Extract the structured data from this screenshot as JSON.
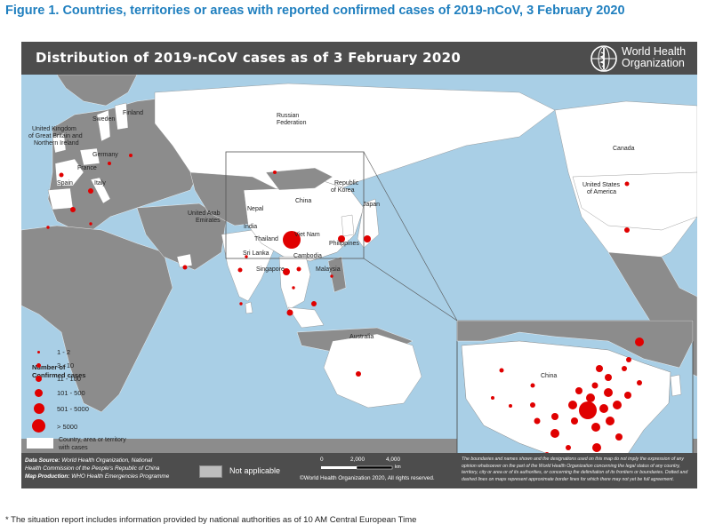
{
  "figure_title": "Figure 1. Countries, territories or areas with reported confirmed cases of 2019-nCoV, 3 February 2020",
  "map_title": "Distribution of 2019-nCoV cases as of 3 February 2020",
  "organization": {
    "line1": "World Health",
    "line2": "Organization"
  },
  "colors": {
    "case_dot": "#e00000",
    "header_bg": "#4d4d4d",
    "ocean": "#a9cfe6",
    "affected": "#ffffff",
    "unaffected": "#8c8c8c",
    "not_applicable": "#bdbdbd",
    "title_blue": "#1f7fbf"
  },
  "labels": {
    "finland": "Finland",
    "sweden": "Sweden",
    "russia1": "Russian",
    "russia2": "Federation",
    "uk1": "United Kingdom",
    "uk2": "of Great Britain and",
    "uk3": "Northern Ireland",
    "germany": "Germany",
    "france": "France",
    "spain": "Spain",
    "italy": "Italy",
    "uae1": "United Arab",
    "uae2": "Emirates",
    "nepal": "Nepal",
    "india": "India",
    "china": "China",
    "korea1": "Republic",
    "korea2": "of Korea",
    "japan": "Japan",
    "thailand": "Thailand",
    "vietnam": "Viet Nam",
    "philippines": "Philippines",
    "cambodia": "Cambodia",
    "srilanka": "Sri Lanka",
    "singapore": "Singapore",
    "malaysia": "Malaysia",
    "australia": "Australia",
    "canada": "Canada",
    "usa1": "United States",
    "usa2": "of America",
    "china_inset": "China"
  },
  "legend": {
    "title1": "Number of",
    "title2": "Confirmed cases",
    "items": [
      "1 - 2",
      "3 - 10",
      "11 - 100",
      "101 - 500",
      "501 - 5000",
      "> 5000"
    ],
    "area1": "Country, area or territory",
    "area2": "with cases"
  },
  "footer": {
    "data_source_label": "Data Source:",
    "data_source_text": "World Health Organization, National",
    "data_source_text2": "Health Commission of the People's Republic of China",
    "map_production_label": "Map Production:",
    "map_production_text": "WHO Health Emergencies Programme",
    "not_applicable": "Not applicable",
    "scale_0": "0",
    "scale_1": "2,000",
    "scale_2": "4,000",
    "scale_unit": "km",
    "copyright": "©World Health Organization 2020, All rights reserved.",
    "disclaimer": "The boundaries and names shown and the designations used on this map do not imply the expression of any opinion whatsoever on the part of the World Health Organization concerning the legal status of any country, territory, city or area or of its authorities, or concerning the delimitation of its frontiers or boundaries. Dotted and dashed lines on maps represent approximate border lines for which there may not yet be full agreement."
  },
  "footnote": "* The situation report includes information provided by national authorities as of 10 AM Central European Time"
}
